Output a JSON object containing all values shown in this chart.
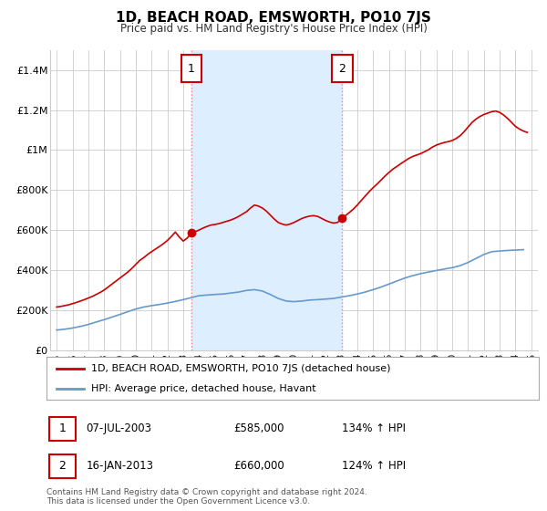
{
  "title": "1D, BEACH ROAD, EMSWORTH, PO10 7JS",
  "subtitle": "Price paid vs. HM Land Registry's House Price Index (HPI)",
  "legend_label_red": "1D, BEACH ROAD, EMSWORTH, PO10 7JS (detached house)",
  "legend_label_blue": "HPI: Average price, detached house, Havant",
  "footer": "Contains HM Land Registry data © Crown copyright and database right 2024.\nThis data is licensed under the Open Government Licence v3.0.",
  "sale1_date": "07-JUL-2003",
  "sale1_price": "£585,000",
  "sale1_hpi": "134% ↑ HPI",
  "sale1_year": 2003.52,
  "sale1_value": 585000,
  "sale2_date": "16-JAN-2013",
  "sale2_price": "£660,000",
  "sale2_hpi": "124% ↑ HPI",
  "sale2_year": 2013.04,
  "sale2_value": 660000,
  "red_color": "#cc0000",
  "blue_color": "#6699cc",
  "shade_color": "#ddeeff",
  "dashed_color": "#ee8888",
  "background_color": "#ffffff",
  "grid_color": "#cccccc",
  "ylim": [
    0,
    1500000
  ],
  "xlim_start": 1994.6,
  "xlim_end": 2025.4,
  "red_x": [
    1995.0,
    1995.25,
    1995.5,
    1995.75,
    1996.0,
    1996.25,
    1996.5,
    1996.75,
    1997.0,
    1997.25,
    1997.5,
    1997.75,
    1998.0,
    1998.25,
    1998.5,
    1998.75,
    1999.0,
    1999.25,
    1999.5,
    1999.75,
    2000.0,
    2000.25,
    2000.5,
    2000.75,
    2001.0,
    2001.25,
    2001.5,
    2001.75,
    2002.0,
    2002.25,
    2002.5,
    2002.75,
    2003.0,
    2003.25,
    2003.52,
    2003.75,
    2004.0,
    2004.25,
    2004.5,
    2004.75,
    2005.0,
    2005.25,
    2005.5,
    2005.75,
    2006.0,
    2006.25,
    2006.5,
    2006.75,
    2007.0,
    2007.25,
    2007.5,
    2007.75,
    2008.0,
    2008.25,
    2008.5,
    2008.75,
    2009.0,
    2009.25,
    2009.5,
    2009.75,
    2010.0,
    2010.25,
    2010.5,
    2010.75,
    2011.0,
    2011.25,
    2011.5,
    2011.75,
    2012.0,
    2012.25,
    2012.5,
    2012.75,
    2013.04,
    2013.25,
    2013.5,
    2013.75,
    2014.0,
    2014.25,
    2014.5,
    2014.75,
    2015.0,
    2015.25,
    2015.5,
    2015.75,
    2016.0,
    2016.25,
    2016.5,
    2016.75,
    2017.0,
    2017.25,
    2017.5,
    2017.75,
    2018.0,
    2018.25,
    2018.5,
    2018.75,
    2019.0,
    2019.25,
    2019.5,
    2019.75,
    2020.0,
    2020.25,
    2020.5,
    2020.75,
    2021.0,
    2021.25,
    2021.5,
    2021.75,
    2022.0,
    2022.25,
    2022.5,
    2022.75,
    2023.0,
    2023.25,
    2023.5,
    2023.75,
    2024.0,
    2024.25,
    2024.5,
    2024.75
  ],
  "red_y": [
    215000,
    218000,
    222000,
    226000,
    232000,
    238000,
    245000,
    252000,
    260000,
    268000,
    278000,
    288000,
    300000,
    315000,
    330000,
    345000,
    360000,
    375000,
    390000,
    408000,
    428000,
    448000,
    462000,
    478000,
    492000,
    505000,
    518000,
    532000,
    548000,
    568000,
    590000,
    565000,
    545000,
    560000,
    585000,
    592000,
    600000,
    610000,
    618000,
    625000,
    628000,
    632000,
    638000,
    644000,
    650000,
    658000,
    668000,
    680000,
    692000,
    710000,
    725000,
    720000,
    710000,
    695000,
    675000,
    655000,
    638000,
    630000,
    625000,
    630000,
    638000,
    648000,
    658000,
    665000,
    670000,
    672000,
    668000,
    658000,
    648000,
    640000,
    635000,
    638000,
    660000,
    672000,
    688000,
    705000,
    725000,
    748000,
    770000,
    792000,
    812000,
    830000,
    850000,
    870000,
    888000,
    905000,
    918000,
    932000,
    945000,
    958000,
    968000,
    975000,
    982000,
    992000,
    1002000,
    1015000,
    1025000,
    1032000,
    1038000,
    1042000,
    1048000,
    1058000,
    1072000,
    1092000,
    1115000,
    1138000,
    1155000,
    1168000,
    1178000,
    1185000,
    1192000,
    1195000,
    1188000,
    1175000,
    1158000,
    1138000,
    1118000,
    1105000,
    1095000,
    1088000
  ],
  "blue_x": [
    1995.0,
    1995.5,
    1996.0,
    1996.5,
    1997.0,
    1997.5,
    1998.0,
    1998.5,
    1999.0,
    1999.5,
    2000.0,
    2000.5,
    2001.0,
    2001.5,
    2002.0,
    2002.5,
    2003.0,
    2003.5,
    2004.0,
    2004.5,
    2005.0,
    2005.5,
    2006.0,
    2006.5,
    2007.0,
    2007.5,
    2008.0,
    2008.5,
    2009.0,
    2009.5,
    2010.0,
    2010.5,
    2011.0,
    2011.5,
    2012.0,
    2012.5,
    2013.0,
    2013.5,
    2014.0,
    2014.5,
    2015.0,
    2015.5,
    2016.0,
    2016.5,
    2017.0,
    2017.5,
    2018.0,
    2018.5,
    2019.0,
    2019.5,
    2020.0,
    2020.5,
    2021.0,
    2021.5,
    2022.0,
    2022.5,
    2023.0,
    2023.5,
    2024.0,
    2024.5
  ],
  "blue_y": [
    100000,
    104000,
    110000,
    118000,
    128000,
    140000,
    152000,
    165000,
    178000,
    192000,
    205000,
    215000,
    222000,
    228000,
    235000,
    243000,
    252000,
    262000,
    272000,
    275000,
    278000,
    280000,
    285000,
    290000,
    298000,
    302000,
    295000,
    278000,
    258000,
    245000,
    242000,
    245000,
    250000,
    252000,
    255000,
    258000,
    265000,
    272000,
    280000,
    290000,
    302000,
    315000,
    330000,
    345000,
    360000,
    372000,
    382000,
    390000,
    398000,
    405000,
    412000,
    422000,
    438000,
    458000,
    478000,
    492000,
    495000,
    498000,
    500000,
    502000
  ],
  "ytick_values": [
    0,
    200000,
    400000,
    600000,
    800000,
    1000000,
    1200000,
    1400000
  ],
  "ytick_labels": [
    "£0",
    "£200K",
    "£400K",
    "£600K",
    "£800K",
    "£1M",
    "£1.2M",
    "£1.4M"
  ],
  "xtick_values": [
    1995,
    1996,
    1997,
    1998,
    1999,
    2000,
    2001,
    2002,
    2003,
    2004,
    2005,
    2006,
    2007,
    2008,
    2009,
    2010,
    2011,
    2012,
    2013,
    2014,
    2015,
    2016,
    2017,
    2018,
    2019,
    2020,
    2021,
    2022,
    2023,
    2024,
    2025
  ]
}
